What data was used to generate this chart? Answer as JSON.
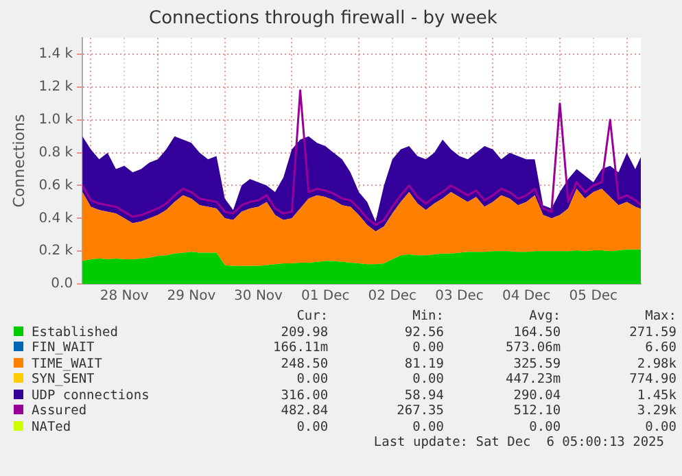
{
  "chart_data": {
    "type": "area",
    "stacked": true,
    "title": "Connections through firewall - by week",
    "ylabel": "Connections",
    "legend": "bottom",
    "grid": true,
    "x": [
      "2025-11-27T21:00",
      "2025-11-28T00:00",
      "2025-11-28T03:00",
      "2025-11-28T06:00",
      "2025-11-28T09:00",
      "2025-11-28T12:00",
      "2025-11-28T15:00",
      "2025-11-28T18:00",
      "2025-11-28T21:00",
      "2025-11-29T00:00",
      "2025-11-29T03:00",
      "2025-11-29T06:00",
      "2025-11-29T09:00",
      "2025-11-29T12:00",
      "2025-11-29T15:00",
      "2025-11-29T18:00",
      "2025-11-29T21:00",
      "2025-11-30T00:00",
      "2025-11-30T03:00",
      "2025-11-30T06:00",
      "2025-11-30T09:00",
      "2025-11-30T12:00",
      "2025-11-30T15:00",
      "2025-11-30T18:00",
      "2025-11-30T21:00",
      "2025-12-01T00:00",
      "2025-12-01T03:00",
      "2025-12-01T06:00",
      "2025-12-01T09:00",
      "2025-12-01T12:00",
      "2025-12-01T15:00",
      "2025-12-01T18:00",
      "2025-12-01T21:00",
      "2025-12-02T00:00",
      "2025-12-02T03:00",
      "2025-12-02T06:00",
      "2025-12-02T09:00",
      "2025-12-02T12:00",
      "2025-12-02T15:00",
      "2025-12-02T18:00",
      "2025-12-02T21:00",
      "2025-12-03T00:00",
      "2025-12-03T03:00",
      "2025-12-03T06:00",
      "2025-12-03T09:00",
      "2025-12-03T12:00",
      "2025-12-03T15:00",
      "2025-12-03T18:00",
      "2025-12-03T21:00",
      "2025-12-04T00:00",
      "2025-12-04T03:00",
      "2025-12-04T06:00",
      "2025-12-04T09:00",
      "2025-12-04T12:00",
      "2025-12-04T15:00",
      "2025-12-04T18:00",
      "2025-12-04T21:00",
      "2025-12-05T00:00",
      "2025-12-05T03:00",
      "2025-12-05T06:00",
      "2025-12-05T09:00",
      "2025-12-05T12:00",
      "2025-12-05T15:00",
      "2025-12-05T18:00",
      "2025-12-05T21:00",
      "2025-12-06T00:00",
      "2025-12-06T03:00",
      "2025-12-06T05:00"
    ],
    "series": [
      {
        "name": "Established",
        "color": "#00cc00",
        "values": [
          140,
          150,
          155,
          150,
          155,
          150,
          150,
          155,
          160,
          170,
          175,
          185,
          190,
          195,
          190,
          190,
          190,
          115,
          110,
          110,
          110,
          110,
          115,
          120,
          125,
          125,
          130,
          130,
          135,
          140,
          140,
          135,
          130,
          125,
          120,
          120,
          125,
          150,
          175,
          180,
          175,
          175,
          180,
          185,
          185,
          190,
          195,
          195,
          195,
          200,
          200,
          200,
          195,
          195,
          200,
          200,
          200,
          200,
          200,
          205,
          200,
          205,
          205,
          200,
          205,
          210,
          210,
          210
        ]
      },
      {
        "name": "FIN_WAIT",
        "color": "#0066b3",
        "type": "line",
        "values": [
          null,
          null,
          null,
          null,
          null,
          null,
          null,
          null,
          null,
          null,
          null,
          null,
          null,
          null,
          null,
          null,
          null,
          null,
          null,
          null,
          null,
          null,
          null,
          null,
          null,
          null,
          null,
          null,
          null,
          null,
          null,
          null,
          null,
          null,
          null,
          null,
          null,
          null,
          null,
          null,
          null,
          null,
          null,
          null,
          null,
          null,
          null,
          null,
          null,
          null,
          null,
          null,
          null,
          null,
          null,
          null,
          null,
          null,
          null,
          null,
          null,
          null,
          null,
          null,
          null,
          null,
          null,
          null
        ]
      },
      {
        "name": "TIME_WAIT",
        "color": "#ff8000",
        "values": [
          420,
          320,
          295,
          290,
          275,
          250,
          220,
          225,
          240,
          250,
          275,
          315,
          350,
          325,
          290,
          280,
          270,
          285,
          280,
          330,
          350,
          360,
          385,
          300,
          265,
          275,
          330,
          390,
          405,
          390,
          370,
          345,
          340,
          295,
          240,
          200,
          225,
          280,
          325,
          380,
          315,
          275,
          310,
          335,
          375,
          340,
          305,
          335,
          275,
          300,
          340,
          320,
          285,
          305,
          340,
          220,
          200,
          220,
          260,
          375,
          320,
          355,
          375,
          330,
          275,
          290,
          260,
          248
        ]
      },
      {
        "name": "SYN_SENT",
        "color": "#ffcc00",
        "type": "line",
        "values": [
          null,
          null,
          null,
          null,
          null,
          null,
          null,
          null,
          null,
          null,
          null,
          null,
          null,
          null,
          null,
          null,
          null,
          null,
          null,
          null,
          null,
          null,
          null,
          null,
          null,
          null,
          null,
          null,
          null,
          null,
          null,
          null,
          null,
          null,
          null,
          null,
          null,
          null,
          null,
          null,
          null,
          null,
          null,
          null,
          null,
          null,
          null,
          null,
          null,
          null,
          null,
          null,
          null,
          null,
          null,
          null,
          null,
          null,
          null,
          null,
          null,
          null,
          null,
          null,
          null,
          null,
          null,
          null
        ]
      },
      {
        "name": "UDP connections",
        "color": "#330099",
        "values": [
          340,
          350,
          310,
          360,
          270,
          320,
          310,
          320,
          340,
          340,
          370,
          400,
          340,
          340,
          320,
          290,
          320,
          120,
          60,
          160,
          180,
          150,
          100,
          140,
          260,
          420,
          420,
          380,
          320,
          310,
          290,
          280,
          210,
          140,
          140,
          60,
          250,
          330,
          320,
          280,
          290,
          310,
          310,
          360,
          260,
          250,
          260,
          270,
          370,
          320,
          220,
          280,
          300,
          260,
          220,
          60,
          60,
          140,
          180,
          120,
          140,
          60,
          120,
          190,
          200,
          300,
          230,
          316
        ]
      },
      {
        "name": "Assured",
        "color": "#990099",
        "type": "line",
        "values": [
          600,
          510,
          490,
          480,
          470,
          440,
          410,
          420,
          440,
          460,
          490,
          540,
          580,
          560,
          520,
          510,
          500,
          440,
          430,
          480,
          500,
          510,
          540,
          460,
          430,
          440,
          1180,
          560,
          580,
          570,
          550,
          520,
          510,
          460,
          400,
          360,
          390,
          470,
          540,
          600,
          530,
          490,
          530,
          560,
          600,
          570,
          540,
          570,
          510,
          540,
          580,
          560,
          520,
          540,
          580,
          460,
          440,
          1100,
          500,
          620,
          560,
          600,
          620,
          1000,
          520,
          540,
          510,
          483
        ]
      },
      {
        "name": "NATed",
        "color": "#ccff00",
        "type": "line",
        "values": [
          null,
          null,
          null,
          null,
          null,
          null,
          null,
          null,
          null,
          null,
          null,
          null,
          null,
          null,
          null,
          null,
          null,
          null,
          null,
          null,
          null,
          null,
          null,
          null,
          null,
          null,
          null,
          null,
          null,
          null,
          null,
          null,
          null,
          null,
          null,
          null,
          null,
          null,
          null,
          null,
          null,
          null,
          null,
          null,
          null,
          null,
          null,
          null,
          null,
          null,
          null,
          null,
          null,
          null,
          null,
          null,
          null,
          null,
          null,
          null,
          null,
          null,
          null,
          null,
          null,
          null,
          null,
          null
        ]
      }
    ],
    "xlim": [
      "2025-11-27T21:00",
      "2025-12-06T05:00"
    ],
    "xticks": [
      {
        "value": "2025-11-28T00:00",
        "label": null
      },
      {
        "value": "2025-11-28T12:00",
        "label": "28 Nov"
      },
      {
        "value": "2025-11-29T00:00",
        "label": null
      },
      {
        "value": "2025-11-29T12:00",
        "label": "29 Nov"
      },
      {
        "value": "2025-11-30T00:00",
        "label": null
      },
      {
        "value": "2025-11-30T12:00",
        "label": "30 Nov"
      },
      {
        "value": "2025-12-01T00:00",
        "label": null
      },
      {
        "value": "2025-12-01T12:00",
        "label": "01 Dec"
      },
      {
        "value": "2025-12-02T00:00",
        "label": null
      },
      {
        "value": "2025-12-02T12:00",
        "label": "02 Dec"
      },
      {
        "value": "2025-12-03T00:00",
        "label": null
      },
      {
        "value": "2025-12-03T12:00",
        "label": "03 Dec"
      },
      {
        "value": "2025-12-04T00:00",
        "label": null
      },
      {
        "value": "2025-12-04T12:00",
        "label": "04 Dec"
      },
      {
        "value": "2025-12-05T00:00",
        "label": null
      },
      {
        "value": "2025-12-05T12:00",
        "label": "05 Dec"
      },
      {
        "value": "2025-12-06T00:00",
        "label": null
      }
    ],
    "ylim": [
      0,
      1500
    ],
    "yticks": [
      {
        "value": 0,
        "label": "0.0"
      },
      {
        "value": 200,
        "label": "0.2 k"
      },
      {
        "value": 400,
        "label": "0.4 k"
      },
      {
        "value": 600,
        "label": "0.6 k"
      },
      {
        "value": 800,
        "label": "0.8 k"
      },
      {
        "value": 1000,
        "label": "1.0 k"
      },
      {
        "value": 1200,
        "label": "1.2 k"
      },
      {
        "value": 1400,
        "label": "1.4 k"
      }
    ],
    "annotations": [
      "Cur:",
      "Min:",
      "Avg:",
      "Max:",
      "209.98",
      "92.56",
      "164.50",
      "271.59",
      "166.11m",
      "0.00",
      "573.06m",
      "6.60",
      "248.50",
      "81.19",
      "325.59",
      "2.98k",
      "0.00",
      "0.00",
      "447.23m",
      "774.90",
      "316.00",
      "58.94",
      "290.04",
      "1.45k",
      "482.84",
      "267.35",
      "512.10",
      "3.29k",
      "0.00",
      "0.00",
      "0.00",
      "0.00",
      "Last update: Sat Dec  6 05:00:13 2025"
    ]
  }
}
